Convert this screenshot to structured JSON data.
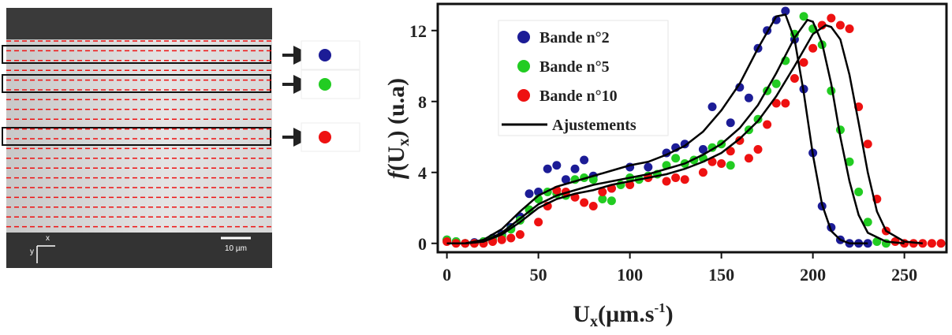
{
  "image": {
    "scale_label": "10 µm",
    "x_axis": "x",
    "y_axis": "y"
  },
  "chart_data": {
    "type": "scatter",
    "x_label_parts": [
      "U",
      "x",
      "(µm.s",
      "-1",
      ")"
    ],
    "y_label_parts": [
      "f",
      "(U",
      "x",
      ") (u.a)"
    ],
    "xlim": [
      -5,
      273
    ],
    "ylim": [
      -0.5,
      13.5
    ],
    "xticks": [
      0,
      50,
      100,
      150,
      200,
      250
    ],
    "yticks": [
      0,
      4,
      8,
      12
    ],
    "legend": "upper left",
    "series": [
      {
        "name": "Bande n°2",
        "color": "#1c1c96",
        "x": [
          0,
          5,
          10,
          15,
          20,
          25,
          30,
          35,
          40,
          45,
          50,
          55,
          60,
          65,
          70,
          75,
          80,
          90,
          100,
          110,
          120,
          125,
          130,
          140,
          145,
          155,
          160,
          165,
          170,
          175,
          180,
          185,
          190,
          195,
          200,
          205,
          210,
          215,
          220,
          225,
          230
        ],
        "values": [
          0.2,
          0.1,
          0.0,
          0.05,
          0.1,
          0.3,
          0.5,
          0.9,
          1.5,
          2.8,
          2.9,
          4.2,
          4.4,
          3.6,
          4.2,
          4.7,
          3.8,
          3.1,
          4.3,
          4.3,
          5.1,
          5.4,
          5.6,
          5.3,
          7.7,
          6.8,
          8.8,
          8.2,
          11.0,
          12.0,
          12.6,
          13.1,
          11.5,
          8.7,
          5.1,
          2.1,
          0.9,
          0.2,
          0.0,
          0.0,
          0.0
        ]
      },
      {
        "name": "Bande n°5",
        "color": "#22cc22",
        "x": [
          0,
          5,
          10,
          15,
          20,
          25,
          30,
          35,
          40,
          45,
          50,
          55,
          60,
          65,
          70,
          75,
          80,
          85,
          90,
          95,
          100,
          105,
          110,
          115,
          120,
          125,
          130,
          135,
          140,
          145,
          150,
          155,
          160,
          165,
          170,
          175,
          180,
          185,
          190,
          195,
          200,
          205,
          210,
          215,
          220,
          225,
          230,
          235,
          240
        ],
        "values": [
          0.2,
          0.1,
          0.0,
          0.0,
          0.1,
          0.2,
          0.4,
          0.8,
          1.3,
          1.9,
          2.5,
          2.9,
          2.8,
          2.7,
          3.6,
          3.7,
          3.6,
          2.5,
          2.4,
          3.3,
          3.7,
          3.6,
          3.8,
          3.9,
          4.4,
          4.8,
          4.5,
          4.7,
          4.8,
          5.4,
          5.6,
          4.4,
          5.8,
          6.4,
          7.0,
          8.6,
          9.0,
          10.3,
          11.8,
          12.8,
          12.1,
          11.2,
          8.6,
          6.4,
          4.6,
          2.9,
          1.2,
          0.1,
          0.0
        ]
      },
      {
        "name": "Bande n°10",
        "color": "#ee1111",
        "x": [
          0,
          5,
          10,
          15,
          20,
          25,
          30,
          35,
          40,
          50,
          55,
          60,
          65,
          70,
          75,
          80,
          85,
          90,
          100,
          110,
          120,
          125,
          130,
          140,
          145,
          150,
          155,
          160,
          165,
          170,
          175,
          180,
          185,
          190,
          195,
          200,
          205,
          210,
          215,
          220,
          225,
          230,
          235,
          240,
          245,
          250,
          255,
          260,
          265,
          270
        ],
        "values": [
          0.1,
          0.0,
          0.0,
          0.0,
          0.0,
          0.1,
          0.2,
          0.3,
          0.5,
          1.2,
          2.1,
          3.0,
          2.9,
          2.6,
          2.3,
          2.1,
          2.9,
          3.1,
          3.3,
          3.7,
          3.5,
          3.7,
          3.6,
          4.0,
          4.6,
          4.5,
          5.2,
          5.8,
          4.8,
          5.3,
          6.7,
          7.9,
          7.9,
          9.3,
          10.2,
          11.0,
          12.3,
          12.7,
          12.3,
          12.1,
          7.7,
          5.6,
          2.5,
          0.7,
          0.1,
          0.0,
          0.0,
          0.0,
          0.0,
          0.0
        ]
      }
    ],
    "fit_lines": {
      "name": "Ajustements",
      "color": "#000000",
      "curves": [
        {
          "x": [
            0,
            10,
            20,
            30,
            40,
            50,
            60,
            70,
            80,
            90,
            100,
            110,
            120,
            130,
            140,
            150,
            160,
            170,
            180,
            185,
            190,
            195,
            200,
            205,
            210,
            215,
            220,
            230
          ],
          "values": [
            0,
            0,
            0.2,
            0.8,
            1.8,
            2.7,
            3.2,
            3.5,
            3.8,
            4.1,
            4.4,
            4.6,
            5.0,
            5.5,
            6.3,
            7.5,
            9.0,
            11.0,
            12.8,
            12.9,
            11.5,
            8.5,
            5.0,
            2.2,
            0.7,
            0.2,
            0,
            0
          ]
        },
        {
          "x": [
            0,
            10,
            20,
            30,
            40,
            50,
            60,
            70,
            80,
            90,
            100,
            110,
            120,
            130,
            140,
            150,
            160,
            170,
            180,
            190,
            197,
            200,
            205,
            210,
            215,
            220,
            225,
            230,
            240,
            250
          ],
          "values": [
            0,
            0,
            0.1,
            0.6,
            1.4,
            2.2,
            2.7,
            3.0,
            3.3,
            3.5,
            3.7,
            3.9,
            4.2,
            4.5,
            5.0,
            5.6,
            6.5,
            7.8,
            9.6,
            11.6,
            12.6,
            12.5,
            11.3,
            9.0,
            6.0,
            3.5,
            1.6,
            0.6,
            0.1,
            0
          ]
        },
        {
          "x": [
            0,
            10,
            20,
            30,
            40,
            50,
            60,
            70,
            80,
            90,
            100,
            110,
            120,
            130,
            140,
            150,
            160,
            170,
            180,
            190,
            200,
            207,
            210,
            215,
            220,
            225,
            230,
            235,
            240,
            250,
            260
          ],
          "values": [
            0,
            0,
            0.1,
            0.5,
            1.2,
            2.0,
            2.5,
            2.8,
            3.0,
            3.3,
            3.5,
            3.7,
            3.9,
            4.2,
            4.6,
            5.1,
            5.9,
            6.9,
            8.3,
            10.0,
            11.8,
            12.3,
            12.2,
            11.5,
            9.5,
            6.8,
            4.0,
            1.8,
            0.7,
            0.1,
            0
          ]
        }
      ]
    }
  }
}
